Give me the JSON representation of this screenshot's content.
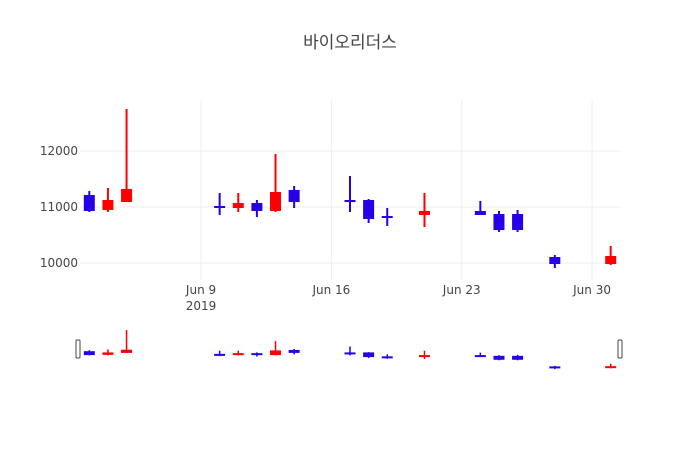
{
  "chart_data": {
    "type": "candlestick",
    "title": "바이오리더스",
    "xlabel": "",
    "ylabel": "",
    "increasing_color": "#ff0000",
    "decreasing_color": "#2600e6",
    "y_ticks": [
      10000,
      11000,
      12000
    ],
    "x_ticks": [
      {
        "date": "2019-06-09",
        "label": "Jun 9",
        "sublabel": "2019"
      },
      {
        "date": "2019-06-16",
        "label": "Jun 16",
        "sublabel": ""
      },
      {
        "date": "2019-06-23",
        "label": "Jun 23",
        "sublabel": ""
      },
      {
        "date": "2019-06-30",
        "label": "Jun 30",
        "sublabel": ""
      }
    ],
    "ylim": [
      9700,
      12900
    ],
    "xlim": [
      "2019-06-02T12:00",
      "2019-07-01T12:00"
    ],
    "grid": true,
    "rangeslider": true,
    "candles": [
      {
        "date": "2019-06-03",
        "open": 11214,
        "high": 11286,
        "low": 10911,
        "close": 10929
      },
      {
        "date": "2019-06-04",
        "open": 10946,
        "high": 11339,
        "low": 10911,
        "close": 11125
      },
      {
        "date": "2019-06-05",
        "open": 11089,
        "high": 12750,
        "low": 11089,
        "close": 11321
      },
      {
        "date": "2019-06-10",
        "open": 11018,
        "high": 11250,
        "low": 10857,
        "close": 10982
      },
      {
        "date": "2019-06-11",
        "open": 10982,
        "high": 11250,
        "low": 10911,
        "close": 11071
      },
      {
        "date": "2019-06-12",
        "open": 11071,
        "high": 11125,
        "low": 10821,
        "close": 10929
      },
      {
        "date": "2019-06-13",
        "open": 10929,
        "high": 11946,
        "low": 10911,
        "close": 11268
      },
      {
        "date": "2019-06-14",
        "open": 11304,
        "high": 11375,
        "low": 10982,
        "close": 11089
      },
      {
        "date": "2019-06-17",
        "open": 11125,
        "high": 11554,
        "low": 10911,
        "close": 11089
      },
      {
        "date": "2019-06-18",
        "open": 11125,
        "high": 11143,
        "low": 10714,
        "close": 10786
      },
      {
        "date": "2019-06-19",
        "open": 10839,
        "high": 10982,
        "low": 10661,
        "close": 10804
      },
      {
        "date": "2019-06-21",
        "open": 10857,
        "high": 11250,
        "low": 10643,
        "close": 10929
      },
      {
        "date": "2019-06-24",
        "open": 10929,
        "high": 11107,
        "low": 10857,
        "close": 10857
      },
      {
        "date": "2019-06-25",
        "open": 10875,
        "high": 10929,
        "low": 10554,
        "close": 10589
      },
      {
        "date": "2019-06-26",
        "open": 10875,
        "high": 10946,
        "low": 10554,
        "close": 10589
      },
      {
        "date": "2019-06-28",
        "open": 10107,
        "high": 10143,
        "low": 9911,
        "close": 9982
      },
      {
        "date": "2019-07-01",
        "open": 9982,
        "high": 10304,
        "low": 9964,
        "close": 10125
      }
    ]
  }
}
